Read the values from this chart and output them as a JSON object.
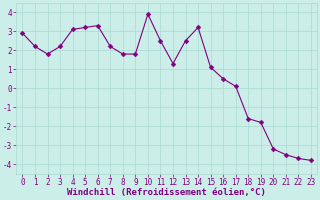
{
  "x": [
    0,
    1,
    2,
    3,
    4,
    5,
    6,
    7,
    8,
    9,
    10,
    11,
    12,
    13,
    14,
    15,
    16,
    17,
    18,
    19,
    20,
    21,
    22,
    23
  ],
  "y": [
    2.9,
    2.2,
    1.8,
    2.2,
    3.1,
    3.2,
    3.3,
    2.2,
    1.8,
    1.8,
    3.9,
    2.5,
    1.3,
    2.5,
    3.2,
    1.1,
    0.5,
    0.1,
    -1.6,
    -1.8,
    -3.2,
    -3.5,
    -3.7,
    -3.8
  ],
  "line_color": "#800080",
  "marker": "D",
  "marker_size": 2.5,
  "bg_color": "#cceee8",
  "grid_color": "#aad8d2",
  "xlabel": "Windchill (Refroidissement éolien,°C)",
  "xlim": [
    -0.5,
    23.5
  ],
  "ylim": [
    -4.5,
    4.5
  ],
  "yticks": [
    -4,
    -3,
    -2,
    -1,
    0,
    1,
    2,
    3,
    4
  ],
  "xticks": [
    0,
    1,
    2,
    3,
    4,
    5,
    6,
    7,
    8,
    9,
    10,
    11,
    12,
    13,
    14,
    15,
    16,
    17,
    18,
    19,
    20,
    21,
    22,
    23
  ],
  "axis_color": "#800080",
  "tick_color": "#800080",
  "label_fontsize": 6.5,
  "tick_fontsize": 5.5
}
